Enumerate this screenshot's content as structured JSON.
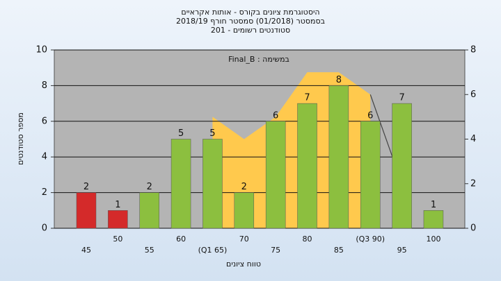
{
  "chart_data": {
    "type": "bar",
    "title": [
      "היסטוגרמת ציונים בקורס - אותות אקראיים",
      "בסמסטר  (01/2018)  סמסטר חורף 2018/19",
      "סטודנטים רשומים - 201"
    ],
    "annotation": "Final_B : במשימה",
    "ylabel": "מספר סטודנטים",
    "xlabel": "טווח ציונים",
    "categories": [
      "45",
      "50",
      "55",
      "60",
      "(Q1 65)",
      "70",
      "75",
      "80",
      "85",
      "(Q3 90)",
      "95",
      "100"
    ],
    "values": [
      2,
      1,
      2,
      5,
      5,
      2,
      6,
      7,
      8,
      6,
      7,
      1
    ],
    "colors": [
      "#d42a2a",
      "#d42a2a",
      "#8cbf3f",
      "#8cbf3f",
      "#8cbf3f",
      "#8cbf3f",
      "#8cbf3f",
      "#8cbf3f",
      "#8cbf3f",
      "#8cbf3f",
      "#8cbf3f",
      "#8cbf3f"
    ],
    "overlay": [
      {
        "kind": "area",
        "axis": "y2",
        "color": "#ffc94d",
        "values": [
          null,
          null,
          null,
          null,
          5,
          4,
          5,
          7,
          7,
          6,
          null,
          null
        ]
      },
      {
        "kind": "line",
        "axis": "y2",
        "color": "#444444",
        "values": [
          null,
          null,
          null,
          null,
          null,
          null,
          null,
          null,
          null,
          6,
          2,
          null
        ]
      }
    ],
    "ylim": [
      0,
      10
    ],
    "yticks": [
      0,
      2,
      4,
      6,
      8,
      10
    ],
    "y2lim": [
      0,
      8
    ],
    "y2ticks": [
      0,
      2,
      4,
      6,
      8
    ],
    "grid": true
  }
}
